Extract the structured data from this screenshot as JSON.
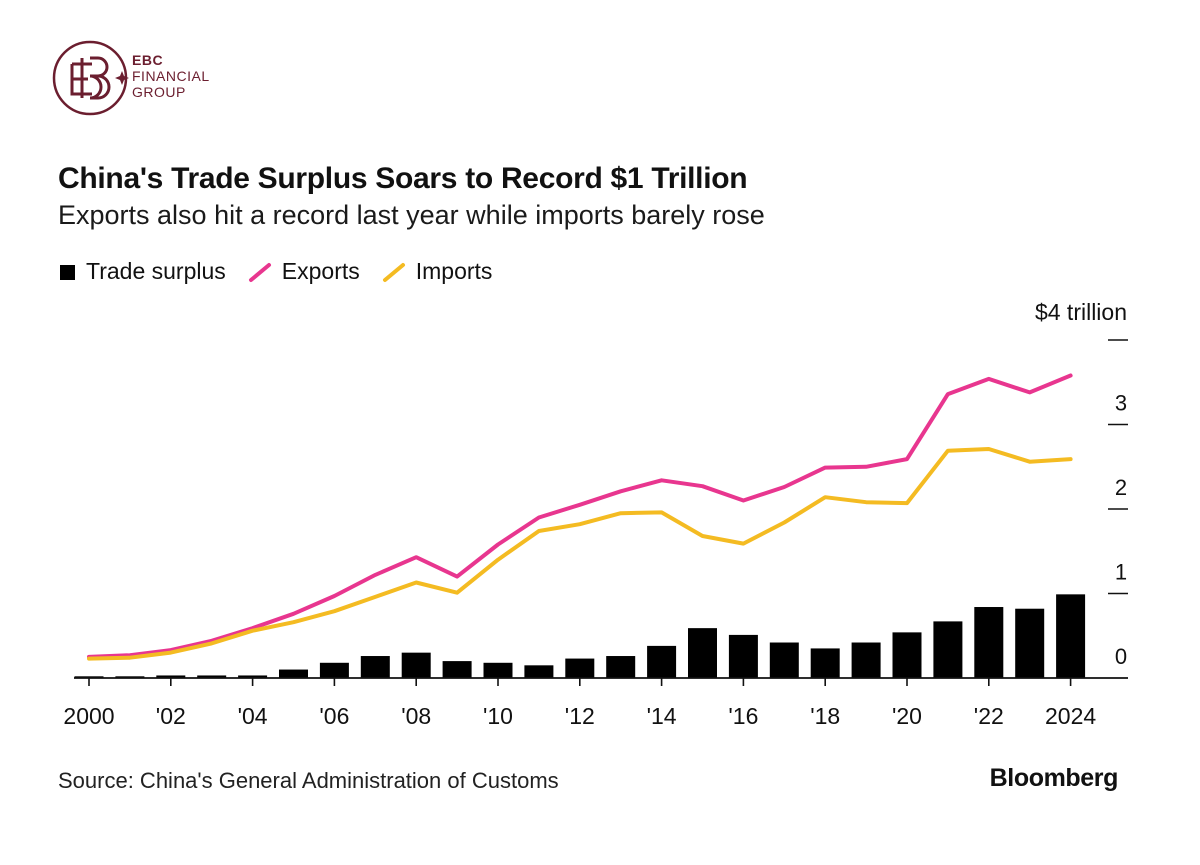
{
  "brand": {
    "logo_lines": [
      "EBC",
      "FINANCIAL",
      "GROUP"
    ],
    "color": "#6b1e2f"
  },
  "header": {
    "title": "China's Trade Surplus Soars to Record $1 Trillion",
    "subtitle": "Exports also hit a record last year while imports barely rose"
  },
  "legend": [
    {
      "label": "Trade surplus",
      "color": "#000000",
      "kind": "square"
    },
    {
      "label": "Exports",
      "color": "#e8368f",
      "kind": "line"
    },
    {
      "label": "Imports",
      "color": "#f4bb22",
      "kind": "line"
    }
  ],
  "chart_data": {
    "type": "bar+line",
    "title": "China's Trade Surplus Soars to Record $1 Trillion",
    "unit_label": "$4 trillion",
    "ylim": [
      0,
      4
    ],
    "yticks": [
      {
        "value": 0,
        "label": "0"
      },
      {
        "value": 1,
        "label": "1"
      },
      {
        "value": 2,
        "label": "2"
      },
      {
        "value": 3,
        "label": "3"
      }
    ],
    "x": [
      2000,
      2001,
      2002,
      2003,
      2004,
      2005,
      2006,
      2007,
      2008,
      2009,
      2010,
      2011,
      2012,
      2013,
      2014,
      2015,
      2016,
      2017,
      2018,
      2019,
      2020,
      2021,
      2022,
      2023,
      2024
    ],
    "xtick_labels": [
      {
        "year": 2000,
        "label": "2000"
      },
      {
        "year": 2002,
        "label": "'02"
      },
      {
        "year": 2004,
        "label": "'04"
      },
      {
        "year": 2006,
        "label": "'06"
      },
      {
        "year": 2008,
        "label": "'08"
      },
      {
        "year": 2010,
        "label": "'10"
      },
      {
        "year": 2012,
        "label": "'12"
      },
      {
        "year": 2014,
        "label": "'14"
      },
      {
        "year": 2016,
        "label": "'16"
      },
      {
        "year": 2018,
        "label": "'18"
      },
      {
        "year": 2020,
        "label": "'20"
      },
      {
        "year": 2022,
        "label": "'22"
      },
      {
        "year": 2024,
        "label": "2024"
      }
    ],
    "series": [
      {
        "name": "Trade surplus",
        "type": "bar",
        "color": "#000000",
        "values": [
          0.02,
          0.02,
          0.03,
          0.03,
          0.03,
          0.1,
          0.18,
          0.26,
          0.3,
          0.2,
          0.18,
          0.15,
          0.23,
          0.26,
          0.38,
          0.59,
          0.51,
          0.42,
          0.35,
          0.42,
          0.54,
          0.67,
          0.84,
          0.82,
          0.99
        ]
      },
      {
        "name": "Exports",
        "type": "line",
        "color": "#e8368f",
        "values": [
          0.25,
          0.27,
          0.33,
          0.44,
          0.59,
          0.76,
          0.97,
          1.22,
          1.43,
          1.2,
          1.58,
          1.9,
          2.05,
          2.21,
          2.34,
          2.27,
          2.1,
          2.26,
          2.49,
          2.5,
          2.59,
          3.36,
          3.54,
          3.38,
          3.58
        ]
      },
      {
        "name": "Imports",
        "type": "line",
        "color": "#f4bb22",
        "values": [
          0.23,
          0.24,
          0.3,
          0.41,
          0.56,
          0.66,
          0.79,
          0.96,
          1.13,
          1.01,
          1.4,
          1.74,
          1.82,
          1.95,
          1.96,
          1.68,
          1.59,
          1.84,
          2.14,
          2.08,
          2.07,
          2.69,
          2.71,
          2.56,
          2.59
        ]
      }
    ]
  },
  "footer": {
    "source": "Source: China's General Administration of Customs",
    "brand": "Bloomberg"
  }
}
